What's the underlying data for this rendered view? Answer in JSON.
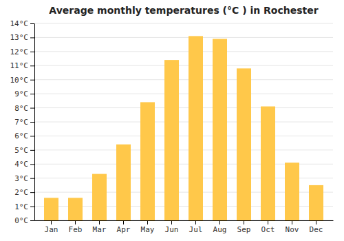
{
  "chart_data": {
    "type": "bar",
    "title": "Average monthly temperatures (°C ) in Rochester",
    "categories": [
      "Jan",
      "Feb",
      "Mar",
      "Apr",
      "May",
      "Jun",
      "Jul",
      "Aug",
      "Sep",
      "Oct",
      "Nov",
      "Dec"
    ],
    "values": [
      1.6,
      1.6,
      3.3,
      5.4,
      8.4,
      11.4,
      13.1,
      12.9,
      10.8,
      8.1,
      4.1,
      2.5
    ],
    "color": "#FFC84A",
    "ylim": [
      0,
      14
    ],
    "yticks": [
      {
        "value": 0,
        "label": "0°C"
      },
      {
        "value": 1,
        "label": "1°C"
      },
      {
        "value": 2,
        "label": "2°C"
      },
      {
        "value": 3,
        "label": "3°C"
      },
      {
        "value": 4,
        "label": "4°C"
      },
      {
        "value": 5,
        "label": "5°C"
      },
      {
        "value": 6,
        "label": "6°C"
      },
      {
        "value": 7,
        "label": "7°C"
      },
      {
        "value": 8,
        "label": "8°C"
      },
      {
        "value": 9,
        "label": "9°C"
      },
      {
        "value": 10,
        "label": "10°C"
      },
      {
        "value": 11,
        "label": "11°C"
      },
      {
        "value": 12,
        "label": "12°C"
      },
      {
        "value": 13,
        "label": "13°C"
      },
      {
        "value": 14,
        "label": "14°C"
      }
    ],
    "grid": true
  }
}
